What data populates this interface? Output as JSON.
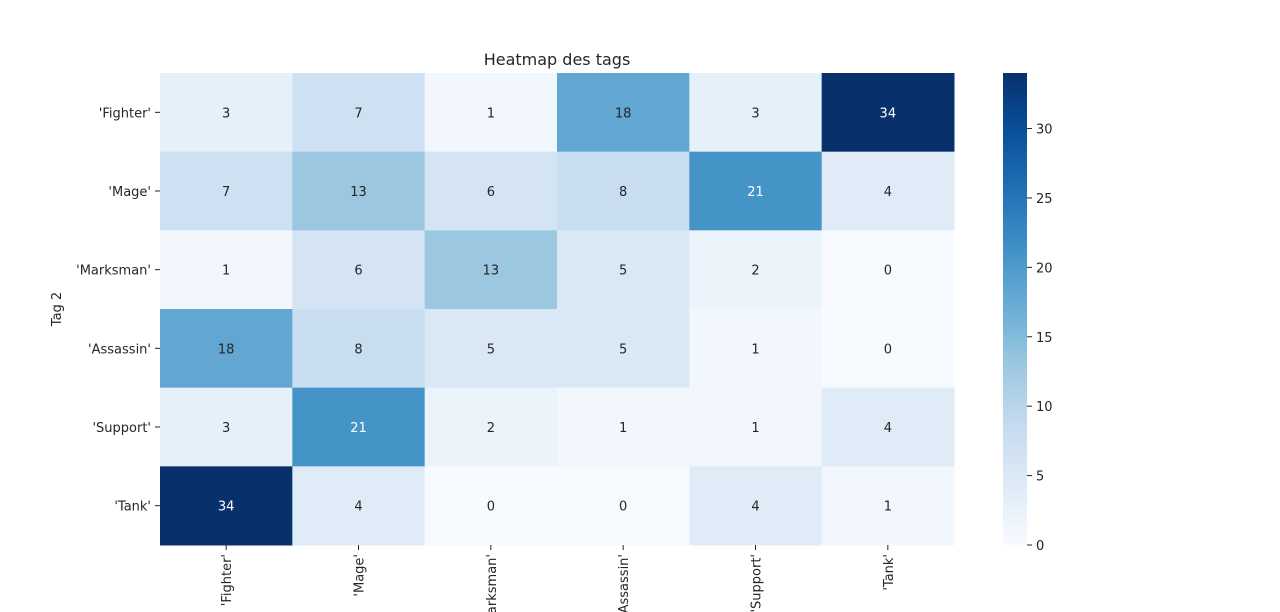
{
  "chart_data": {
    "type": "heatmap",
    "title": "Heatmap des tags",
    "xlabel": "",
    "ylabel": "Tag 2",
    "x_categories": [
      "'Fighter'",
      "'Mage'",
      "'Marksman'",
      "'Assassin'",
      "'Support'",
      "'Tank'"
    ],
    "y_categories": [
      "'Fighter'",
      "'Mage'",
      "'Marksman'",
      "'Assassin'",
      "'Support'",
      "'Tank'"
    ],
    "values": [
      [
        3,
        7,
        1,
        18,
        3,
        34
      ],
      [
        7,
        13,
        6,
        8,
        21,
        4
      ],
      [
        1,
        6,
        13,
        5,
        2,
        0
      ],
      [
        18,
        8,
        5,
        5,
        1,
        0
      ],
      [
        3,
        21,
        2,
        1,
        1,
        4
      ],
      [
        34,
        4,
        0,
        0,
        4,
        1
      ]
    ],
    "colormap": "Blues",
    "colorbar": {
      "min": 0,
      "max": 34,
      "ticks": [
        0,
        5,
        10,
        15,
        20,
        25,
        30
      ]
    },
    "annotations": true
  }
}
